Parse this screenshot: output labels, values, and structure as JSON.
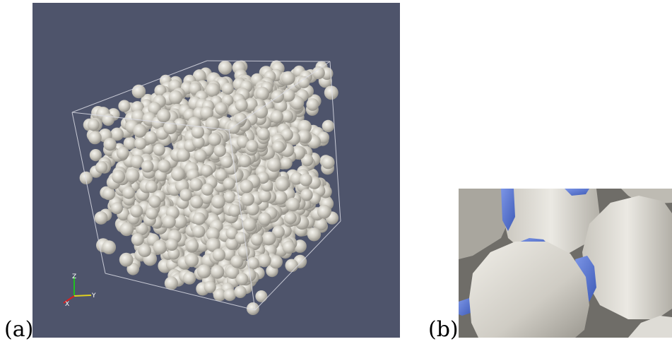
{
  "labels": {
    "a": "(a)",
    "b": "(b)"
  },
  "axes": {
    "z": "Z",
    "y": "Y",
    "x": "X"
  },
  "colors": {
    "background": "#4e546b",
    "sphere_light": "#f1f0ea",
    "sphere_mid": "#c7c4ba",
    "sphere_dark": "#8f8b82",
    "box_edge": "#dcdde6",
    "contact_blue": "#5a76d0",
    "axis_x": "#d62020",
    "axis_y": "#e0d020",
    "axis_z": "#20c020"
  }
}
